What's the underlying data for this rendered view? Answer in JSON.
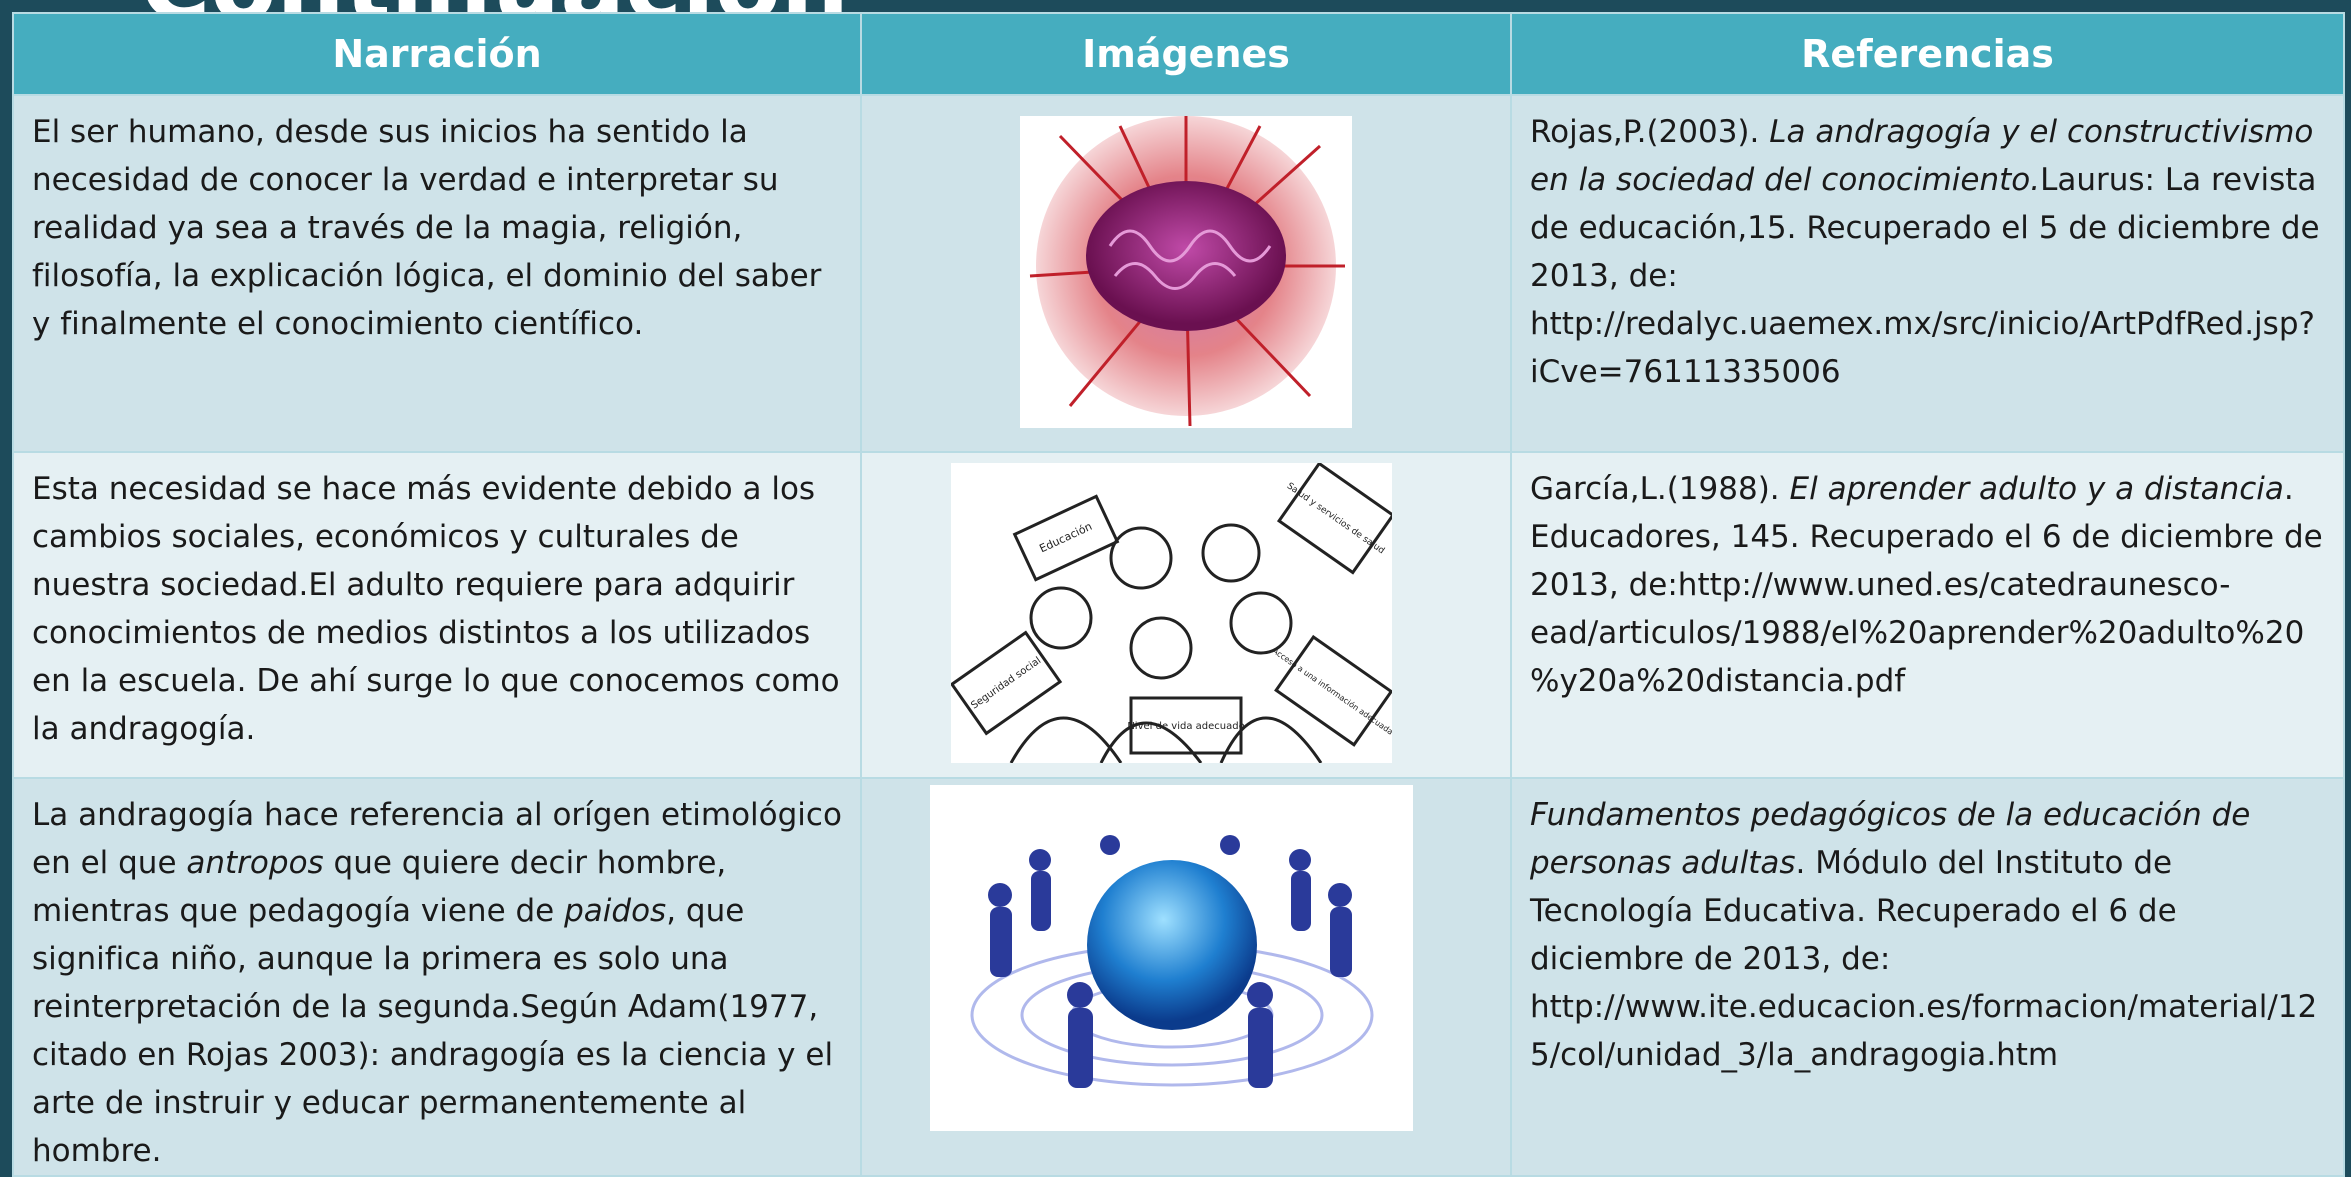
{
  "title": "Continuación",
  "table": {
    "header": [
      "Narración",
      "Imágenes",
      "Referencias"
    ],
    "rows": [
      {
        "narration": [
          "El ser humano, desde sus inicios ha sentido la necesidad de conocer la verdad e interpretar su realidad ya sea a través de la magia, religión, filosofía, la explicación lógica, el dominio del saber y finalmente el conocimiento científico."
        ],
        "reference": [
          "Rojas,P.(2003). ",
          "La andragogía y el constructivismo en la sociedad del conocimiento.",
          "Laurus: La revista de educación,15. Recuperado el 5 de diciembre de 2013, de: http://redalyc.uaemex.mx/src/inicio/ArtPdfRed.jsp?iCve=76111335006"
        ]
      },
      {
        "narration": [
          "Esta necesidad  se hace más evidente debido a los cambios sociales, económicos y culturales de nuestra sociedad.El adulto requiere para adquirir conocimientos de medios distintos a los utilizados en la escuela. De ahí surge lo que conocemos como la andragogía."
        ],
        "image_labels": [
          "Educación",
          "Salud y servicios de salud",
          "Seguridad social",
          "Nivel de vida adecuado",
          "Acceso a una información adecuada"
        ],
        "reference": [
          "García,L.(1988). ",
          "El aprender adulto y a distancia",
          ". Educadores, 145. Recuperado el 6 de diciembre de 2013, de:http://www.uned.es/catedraunesco-ead/articulos/1988/el%20aprender%20adulto%20%y20a%20distancia.pdf"
        ]
      },
      {
        "narration": [
          "La andragogía hace referencia al orígen etimológico en el que ",
          "antropos",
          " que quiere decir hombre, mientras que pedagogía viene de ",
          "paidos",
          ", que significa niño, aunque la primera es solo una reinterpretación de la segunda.Según Adam(1977, citado en Rojas 2003): andragogía es la ciencia y el arte de instruir y educar permanentemente al hombre."
        ],
        "reference": [
          " Fundamentos pedagógicos de la educación de personas adultas",
          ". Módulo del Instituto de Tecnología Educativa. Recuperado el 6 de diciembre de 2013, de: http://www.ite.educacion.es/formacion/material/125/col/unidad_3/la_andragogia.htm"
        ]
      }
    ]
  }
}
